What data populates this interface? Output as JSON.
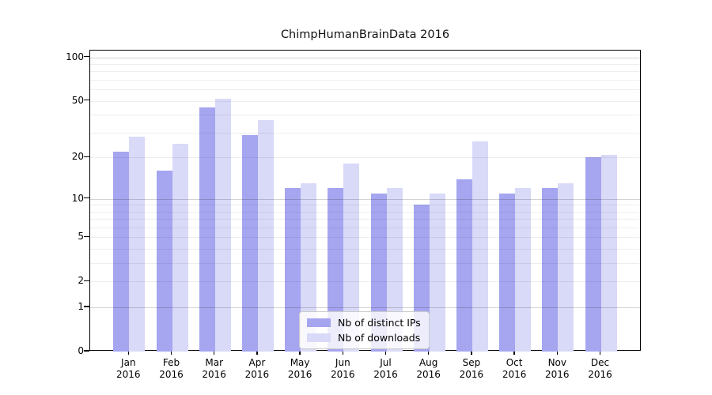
{
  "title": "ChimpHumanBrainData 2016",
  "chart_data": {
    "type": "bar",
    "title": "ChimpHumanBrainData 2016",
    "categories": [
      "Jan 2016",
      "Feb 2016",
      "Mar 2016",
      "Apr 2016",
      "May 2016",
      "Jun 2016",
      "Jul 2016",
      "Aug 2016",
      "Sep 2016",
      "Oct 2016",
      "Nov 2016",
      "Dec 2016"
    ],
    "x_tick_months": [
      "Jan",
      "Feb",
      "Mar",
      "Apr",
      "May",
      "Jun",
      "Jul",
      "Aug",
      "Sep",
      "Oct",
      "Nov",
      "Dec"
    ],
    "x_tick_year": "2016",
    "series": [
      {
        "name": "Nb of distinct IPs",
        "color": "#a5a5f0",
        "values": [
          22,
          16,
          45,
          29,
          12,
          12,
          11,
          9,
          14,
          11,
          12,
          20
        ]
      },
      {
        "name": "Nb of downloads",
        "color": "#d9d9f8",
        "values": [
          28,
          25,
          52,
          37,
          13,
          18,
          12,
          11,
          26,
          12,
          13,
          21
        ]
      }
    ],
    "yscale": "log1p (position proportional to log10(1+y), 0 at baseline)",
    "ylim": [
      0,
      112
    ],
    "y_ticks": [
      100,
      50,
      20,
      10,
      5,
      2,
      1,
      0
    ],
    "y_tick_labels": [
      "100",
      "50",
      "20",
      "10",
      "5",
      "2",
      "1",
      "0"
    ],
    "grid": {
      "orientation": "horizontal",
      "minor_values": [
        2,
        3,
        4,
        5,
        6,
        7,
        8,
        9,
        20,
        30,
        40,
        50,
        60,
        70,
        80,
        90
      ],
      "major_values": [
        1,
        10,
        100
      ]
    },
    "legend": {
      "position": "lower center, inside plot",
      "entries": [
        "Nb of distinct IPs",
        "Nb of downloads"
      ]
    },
    "xlabel": "",
    "ylabel": ""
  }
}
